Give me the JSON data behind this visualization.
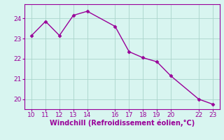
{
  "x": [
    10,
    11,
    12,
    13,
    14,
    16,
    17,
    18,
    19,
    20,
    22,
    23
  ],
  "y": [
    23.15,
    23.85,
    23.15,
    24.15,
    24.35,
    23.6,
    22.35,
    22.05,
    21.85,
    21.15,
    20.0,
    19.75
  ],
  "line_color": "#990099",
  "marker": "D",
  "marker_size": 2.5,
  "bg_color": "#d8f5f0",
  "grid_color": "#aad4cc",
  "xlabel": "Windchill (Refroidissement éolien,°C)",
  "xlabel_color": "#990099",
  "tick_color": "#990099",
  "spine_color": "#990099",
  "xlim": [
    9.5,
    23.5
  ],
  "ylim": [
    19.5,
    24.7
  ],
  "xticks": [
    10,
    11,
    12,
    13,
    14,
    16,
    17,
    18,
    19,
    20,
    22,
    23
  ],
  "yticks": [
    20,
    21,
    22,
    23,
    24
  ],
  "tick_fontsize": 6.5,
  "xlabel_fontsize": 7.0,
  "linewidth": 1.0
}
